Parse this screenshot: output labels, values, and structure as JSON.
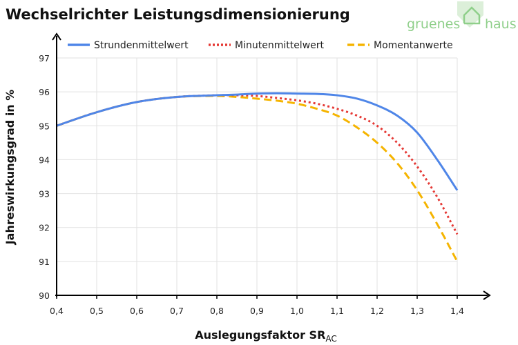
{
  "logo": {
    "left": "gruenes",
    "right": "haus"
  },
  "chart_data": {
    "type": "line",
    "title": "Wechselrichter Leistungsdimensionierung",
    "xlabel": "Auslegungsfaktor SR",
    "xlabel_sub": "AC",
    "ylabel": "Jahreswirkungsgrad in %",
    "xlim": [
      0.4,
      1.4
    ],
    "ylim": [
      90,
      97
    ],
    "x_ticks": [
      0.4,
      0.5,
      0.6,
      0.7,
      0.8,
      0.9,
      1.0,
      1.1,
      1.2,
      1.3,
      1.4
    ],
    "x_tick_labels": [
      "0,4",
      "0,5",
      "0,6",
      "0,7",
      "0,8",
      "0,9",
      "1,0",
      "1,1",
      "1,2",
      "1,3",
      "1,4"
    ],
    "y_ticks": [
      90,
      91,
      92,
      93,
      94,
      95,
      96,
      97
    ],
    "y_tick_labels": [
      "90",
      "91",
      "92",
      "93",
      "94",
      "95",
      "96",
      "97"
    ],
    "grid": true,
    "legend_position": "top",
    "x": [
      0.4,
      0.5,
      0.6,
      0.7,
      0.8,
      0.85,
      0.9,
      0.95,
      1.0,
      1.05,
      1.1,
      1.15,
      1.2,
      1.25,
      1.3,
      1.35,
      1.4
    ],
    "series": [
      {
        "name": "Strundenmittelwert",
        "color": "#4f86e8",
        "style": "solid",
        "values": [
          95.0,
          95.4,
          95.7,
          95.85,
          95.9,
          95.92,
          95.95,
          95.96,
          95.95,
          95.94,
          95.9,
          95.8,
          95.6,
          95.3,
          94.8,
          94.0,
          93.1
        ]
      },
      {
        "name": "Minutenmittelwert",
        "color": "#e53935",
        "style": "dotted",
        "values": [
          95.0,
          95.4,
          95.7,
          95.85,
          95.9,
          95.9,
          95.88,
          95.82,
          95.75,
          95.65,
          95.5,
          95.3,
          95.0,
          94.5,
          93.8,
          92.9,
          91.8
        ]
      },
      {
        "name": "Momentanwerte",
        "color": "#f5b400",
        "style": "dashed",
        "values": [
          95.0,
          95.4,
          95.7,
          95.85,
          95.88,
          95.85,
          95.8,
          95.74,
          95.65,
          95.5,
          95.3,
          94.95,
          94.5,
          93.9,
          93.1,
          92.1,
          91.0
        ]
      }
    ]
  }
}
